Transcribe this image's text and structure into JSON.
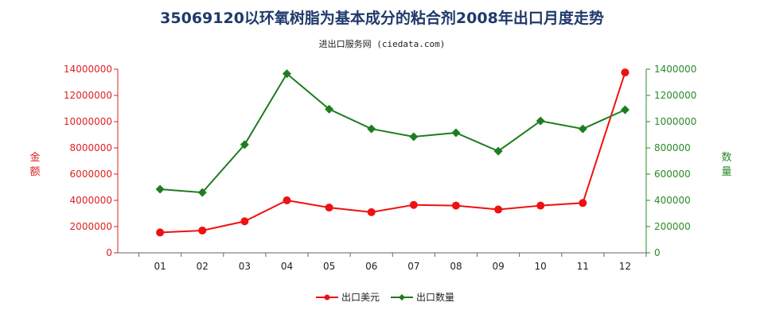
{
  "chart_data": {
    "type": "line",
    "title": "35069120以环氧树脂为基本成分的粘合剂2008年出口月度走势",
    "subtitle": "进出口服务网 (ciedata.com)",
    "categories": [
      "01",
      "02",
      "03",
      "04",
      "05",
      "06",
      "07",
      "08",
      "09",
      "10",
      "11",
      "12"
    ],
    "y_left": {
      "label": "金额",
      "range": [
        0,
        14000000
      ],
      "ticks": [
        "0",
        "2000000",
        "4000000",
        "6000000",
        "8000000",
        "10000000",
        "12000000",
        "14000000"
      ],
      "color": "#dd2222"
    },
    "y_right": {
      "label": "数量",
      "range": [
        0,
        1400000
      ],
      "ticks": [
        "0",
        "200000",
        "400000",
        "600000",
        "800000",
        "1000000",
        "1200000",
        "1400000"
      ],
      "color": "#2a8a2a"
    },
    "series": [
      {
        "name": "出口美元",
        "axis": "left",
        "color": "#ee1111",
        "marker": "circle",
        "values": [
          1550000,
          1700000,
          2400000,
          4000000,
          3450000,
          3100000,
          3650000,
          3600000,
          3300000,
          3600000,
          3800000,
          13750000
        ]
      },
      {
        "name": "出口数量",
        "axis": "right",
        "color": "#1e7d1e",
        "marker": "diamond",
        "values": [
          485000,
          460000,
          825000,
          1365000,
          1095000,
          945000,
          885000,
          915000,
          775000,
          1005000,
          945000,
          1090000
        ]
      }
    ],
    "grid": false,
    "legend_position": "bottom"
  }
}
